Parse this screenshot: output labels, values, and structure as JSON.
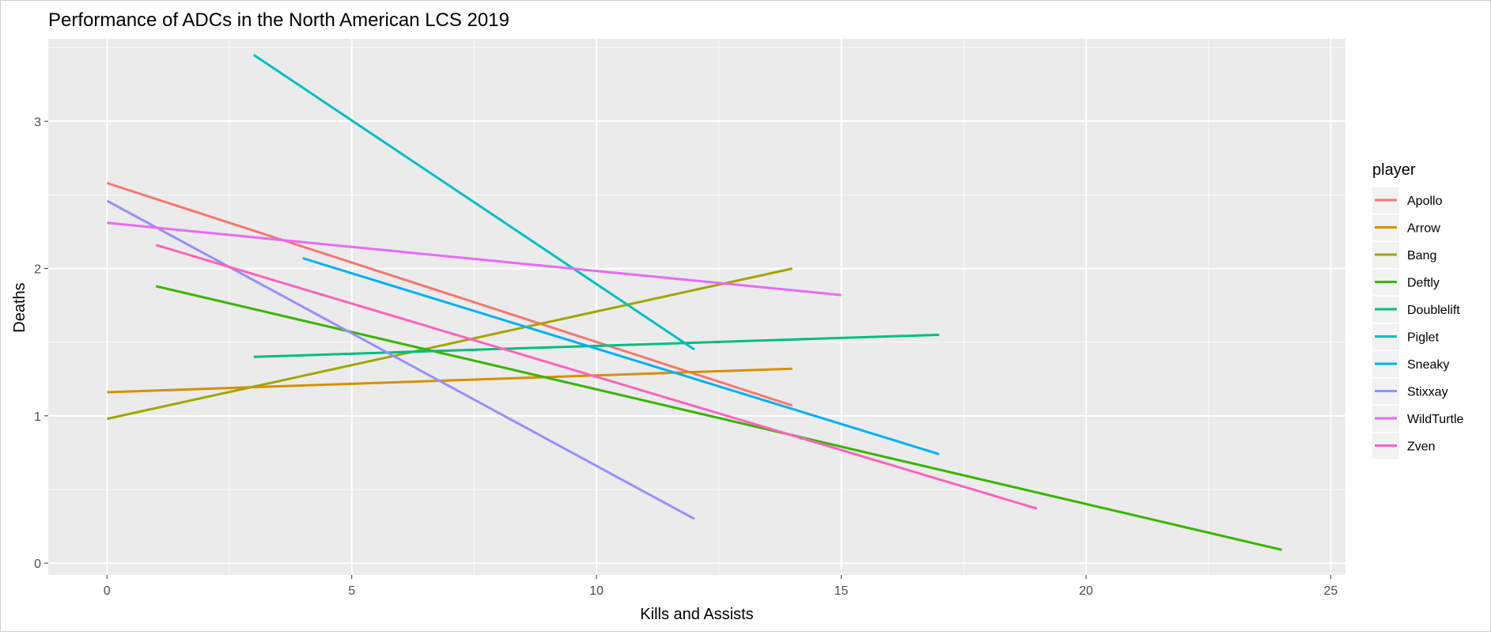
{
  "chart_data": {
    "type": "line",
    "title": "Performance of ADCs in the North American LCS 2019",
    "xlabel": "Kills and Assists",
    "ylabel": "Deaths",
    "xlim": [
      -1.2,
      25.3
    ],
    "ylim": [
      -0.08,
      3.56
    ],
    "x_ticks": [
      0,
      5,
      10,
      15,
      20,
      25
    ],
    "x_tick_labels": [
      "0",
      "5",
      "10",
      "15",
      "20",
      "25"
    ],
    "y_ticks": [
      0,
      1,
      2,
      3
    ],
    "y_tick_labels": [
      "0",
      "1",
      "2",
      "3"
    ],
    "grid": true,
    "legend": {
      "title": "player",
      "position": "right"
    },
    "series": [
      {
        "name": "Apollo",
        "color": "#F8766D",
        "points": [
          [
            0,
            2.58
          ],
          [
            14,
            1.07
          ]
        ]
      },
      {
        "name": "Arrow",
        "color": "#D89000",
        "points": [
          [
            0,
            1.16
          ],
          [
            14,
            1.32
          ]
        ]
      },
      {
        "name": "Bang",
        "color": "#A3A500",
        "points": [
          [
            0,
            0.98
          ],
          [
            14,
            2.0
          ]
        ]
      },
      {
        "name": "Deftly",
        "color": "#39B600",
        "points": [
          [
            1,
            1.88
          ],
          [
            24,
            0.09
          ]
        ]
      },
      {
        "name": "Doublelift",
        "color": "#00BF7D",
        "points": [
          [
            3,
            1.4
          ],
          [
            17,
            1.55
          ]
        ]
      },
      {
        "name": "Piglet",
        "color": "#00BFC4",
        "points": [
          [
            3,
            3.45
          ],
          [
            12,
            1.45
          ]
        ]
      },
      {
        "name": "Sneaky",
        "color": "#00B0F6",
        "points": [
          [
            4,
            2.07
          ],
          [
            17,
            0.74
          ]
        ]
      },
      {
        "name": "Stixxay",
        "color": "#9590FF",
        "points": [
          [
            0,
            2.46
          ],
          [
            12,
            0.3
          ]
        ]
      },
      {
        "name": "WildTurtle",
        "color": "#E76BF3",
        "points": [
          [
            0,
            2.31
          ],
          [
            15,
            1.82
          ]
        ]
      },
      {
        "name": "Zven",
        "color": "#FF62BC",
        "points": [
          [
            1,
            2.16
          ],
          [
            19,
            0.37
          ]
        ]
      }
    ]
  }
}
